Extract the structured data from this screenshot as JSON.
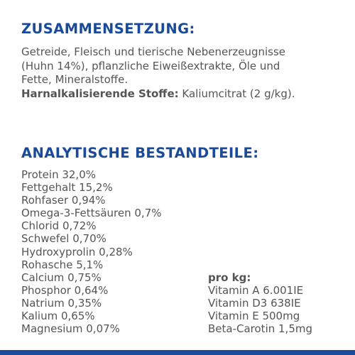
{
  "composition": {
    "heading": "ZUSAMMENSETZUNG:",
    "lines": [
      "Getreide, Fleisch und tierische Nebenerzeugnisse",
      "(Huhn 14%), pflanzliche Eiweißextrakte, Öle und",
      "Fette, Mineralstoffe."
    ],
    "additive_label": "Harnalkalisierende Stoffe:",
    "additive_value": " Kaliumcitrat (2 g/kg)."
  },
  "analysis": {
    "heading": "ANALYTISCHE BESTANDTEILE:",
    "items": [
      "Protein 32,0%",
      "Fettgehalt 15,2%",
      "Rohfaser 0,94%",
      "Omega-3-Fettsäuren 0,7%",
      "Chlorid 0,72%",
      "Schwefel 0,70%",
      "Hydroxyprolin 0,28%",
      "Rohasche 5,1%",
      "Calcium 0,75%",
      "Phosphor 0,64%",
      "Natrium 0,35%",
      "Kalium 0,65%",
      "Magnesium 0,07%"
    ]
  },
  "vitamins": {
    "title": "pro kg:",
    "items": [
      "Vitamin A 6.001IE",
      "Vitamin D3 638IE",
      "Vitamin E 500mg",
      "Beta-Carotin 1,5mg"
    ]
  },
  "colors": {
    "heading": "#1a4a9a",
    "text": "#555555",
    "bar": "#1a4a9a"
  }
}
